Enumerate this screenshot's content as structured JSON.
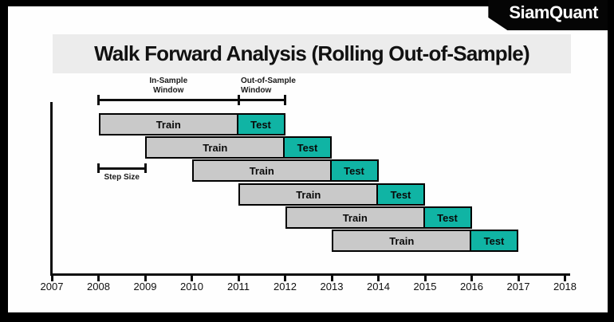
{
  "logo": {
    "text": "SiamQuant"
  },
  "title": {
    "text": "Walk Forward Analysis (Rolling Out-of-Sample)"
  },
  "chart_data": {
    "type": "gantt",
    "title": "Walk Forward Analysis (Rolling Out-of-Sample)",
    "x_axis": {
      "ticks": [
        2007,
        2008,
        2009,
        2010,
        2011,
        2012,
        2013,
        2014,
        2015,
        2016,
        2017,
        2018
      ],
      "range": [
        2007,
        2018
      ]
    },
    "series_labels": {
      "train": "Train",
      "test": "Test"
    },
    "rows": [
      {
        "train": [
          2008,
          2011
        ],
        "test": [
          2011,
          2012
        ]
      },
      {
        "train": [
          2009,
          2012
        ],
        "test": [
          2012,
          2013
        ]
      },
      {
        "train": [
          2010,
          2013
        ],
        "test": [
          2013,
          2014
        ]
      },
      {
        "train": [
          2011,
          2014
        ],
        "test": [
          2014,
          2015
        ]
      },
      {
        "train": [
          2012,
          2015
        ],
        "test": [
          2015,
          2016
        ]
      },
      {
        "train": [
          2013,
          2016
        ],
        "test": [
          2016,
          2017
        ]
      }
    ],
    "annotations": {
      "in_sample": {
        "lines": [
          "In-Sample",
          "Window"
        ],
        "span": [
          2008,
          2011
        ]
      },
      "out_of_sample": {
        "lines": [
          "Out-of-Sample",
          "Window"
        ],
        "span": [
          2011,
          2012
        ]
      },
      "step_size": {
        "label": "Step Size",
        "span": [
          2008,
          2009
        ]
      }
    },
    "colors": {
      "train": "#c9c9c9",
      "test": "#10b4a4",
      "bar_border": "#000000",
      "axis": "#0d0d0d",
      "title_band": "#ececec",
      "frame": "#000000"
    }
  }
}
